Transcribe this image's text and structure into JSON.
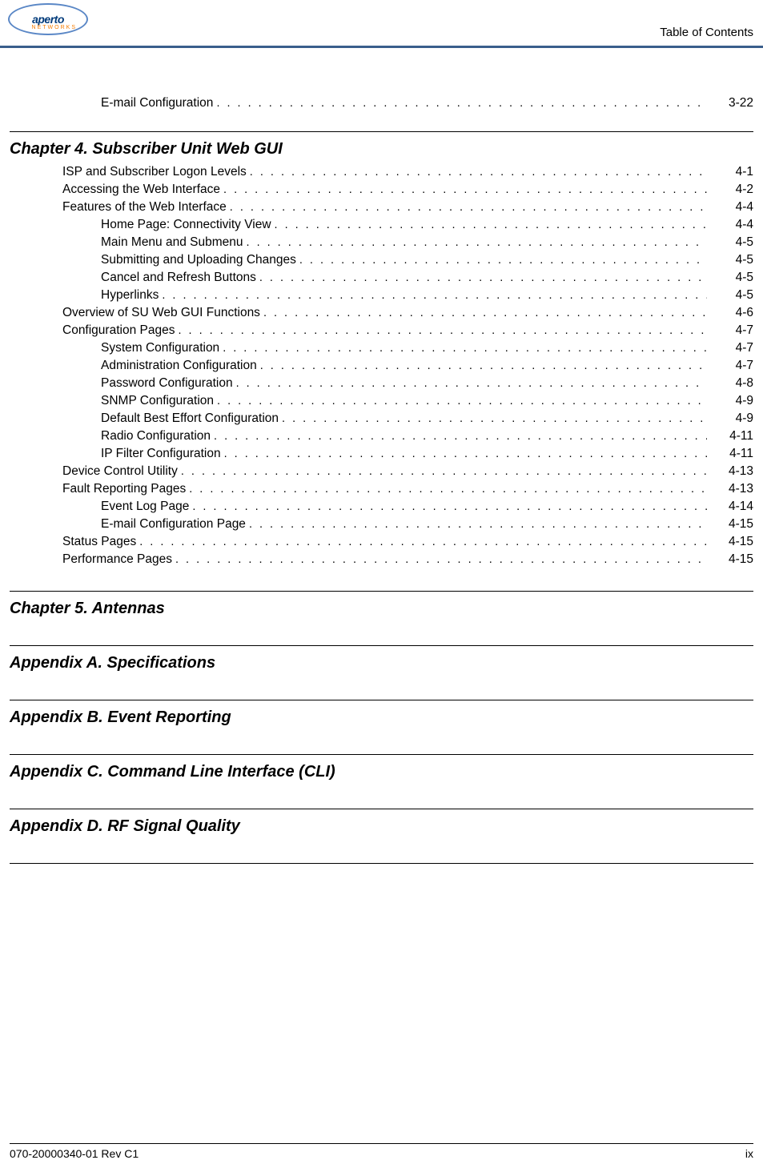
{
  "logo": {
    "brand": "aperto",
    "sub": "networks"
  },
  "header_title": "Table of Contents",
  "pre_rows": [
    {
      "level": 1,
      "title": "E-mail Configuration",
      "page": "3-22"
    }
  ],
  "chapter4": {
    "title": "Chapter 4.  Subscriber Unit Web GUI"
  },
  "rows4": [
    {
      "level": 0,
      "title": "ISP and Subscriber Logon Levels",
      "page": "4-1"
    },
    {
      "level": 0,
      "title": "Accessing the Web Interface",
      "page": "4-2"
    },
    {
      "level": 0,
      "title": "Features of the Web Interface",
      "page": "4-4"
    },
    {
      "level": 1,
      "title": "Home Page: Connectivity View",
      "page": "4-4"
    },
    {
      "level": 1,
      "title": "Main Menu and Submenu",
      "page": "4-5"
    },
    {
      "level": 1,
      "title": "Submitting and Uploading Changes",
      "page": "4-5"
    },
    {
      "level": 1,
      "title": "Cancel and Refresh Buttons",
      "page": "4-5"
    },
    {
      "level": 1,
      "title": "Hyperlinks",
      "page": "4-5"
    },
    {
      "level": 0,
      "title": "Overview of SU Web GUI Functions",
      "page": "4-6"
    },
    {
      "level": 0,
      "title": "Configuration Pages",
      "page": "4-7"
    },
    {
      "level": 1,
      "title": "System Configuration",
      "page": "4-7"
    },
    {
      "level": 1,
      "title": "Administration Configuration",
      "page": "4-7"
    },
    {
      "level": 1,
      "title": "Password Configuration",
      "page": "4-8"
    },
    {
      "level": 1,
      "title": "SNMP Configuration",
      "page": "4-9"
    },
    {
      "level": 1,
      "title": "Default Best Effort Configuration",
      "page": "4-9"
    },
    {
      "level": 1,
      "title": "Radio Configuration",
      "page": "4-11"
    },
    {
      "level": 1,
      "title": "IP Filter Configuration",
      "page": "4-11"
    },
    {
      "level": 0,
      "title": "Device Control Utility",
      "page": "4-13"
    },
    {
      "level": 0,
      "title": "Fault Reporting Pages",
      "page": "4-13"
    },
    {
      "level": 1,
      "title": "Event Log Page",
      "page": "4-14"
    },
    {
      "level": 1,
      "title": "E-mail Configuration Page",
      "page": "4-15"
    },
    {
      "level": 0,
      "title": "Status Pages",
      "page": "4-15"
    },
    {
      "level": 0,
      "title": "Performance Pages",
      "page": "4-15"
    }
  ],
  "chapter5": {
    "title": "Chapter 5.  Antennas"
  },
  "appendixA": {
    "title": "Appendix A.  Specifications"
  },
  "appendixB": {
    "title": "Appendix B.  Event Reporting"
  },
  "appendixC": {
    "title": "Appendix C.  Command Line Interface (CLI)"
  },
  "appendixD": {
    "title": "Appendix D.  RF Signal Quality"
  },
  "footer": {
    "left": "070-20000340-01 Rev C1",
    "right": "ix"
  }
}
